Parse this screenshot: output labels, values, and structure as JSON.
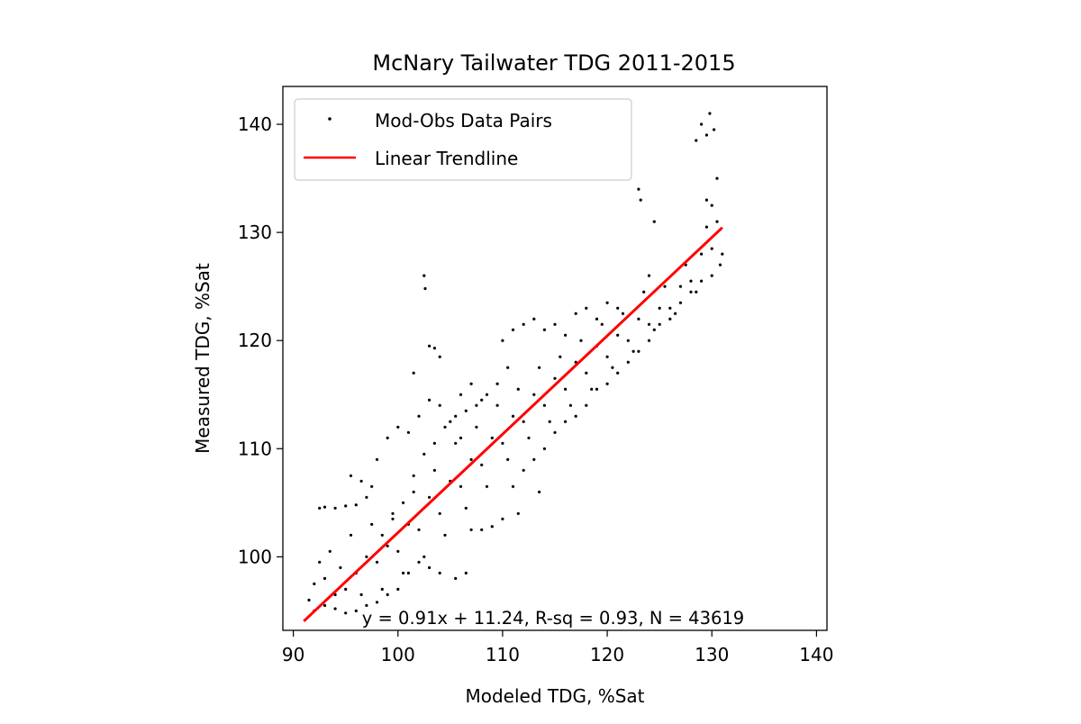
{
  "chart_data": {
    "type": "scatter",
    "title": "McNary Tailwater TDG 2011-2015",
    "xlabel": "Modeled TDG, %Sat",
    "ylabel": "Measured TDG, %Sat",
    "xlim": [
      89,
      141
    ],
    "ylim": [
      93.2,
      143.5
    ],
    "xticks": [
      90,
      100,
      110,
      120,
      130,
      140
    ],
    "yticks": [
      100,
      110,
      120,
      130,
      140
    ],
    "grid": false,
    "legend": {
      "placement": "upper-left",
      "entries": [
        {
          "label": "Mod-Obs Data Pairs",
          "marker": "dot",
          "color": "#000000"
        },
        {
          "label": "Linear Trendline",
          "marker": "line",
          "color": "#ff0000"
        }
      ]
    },
    "annotation": "y = 0.91x + 11.24, R-sq = 0.93, N = 43619",
    "series": [
      {
        "name": "Mod-Obs Data Pairs",
        "kind": "scatter",
        "color": "#000000",
        "n": 43619,
        "points": [
          [
            91.5,
            96.0
          ],
          [
            92.0,
            97.5
          ],
          [
            92.5,
            104.5
          ],
          [
            93.0,
            104.6
          ],
          [
            94.0,
            104.5
          ],
          [
            95.0,
            104.7
          ],
          [
            96.0,
            104.8
          ],
          [
            92.5,
            99.5
          ],
          [
            93.0,
            98.0
          ],
          [
            93.5,
            100.5
          ],
          [
            94.0,
            96.5
          ],
          [
            94.5,
            99.0
          ],
          [
            95.0,
            97.0
          ],
          [
            95.5,
            102.0
          ],
          [
            96.0,
            98.5
          ],
          [
            96.5,
            96.5
          ],
          [
            97.0,
            100.0
          ],
          [
            97.5,
            103.0
          ],
          [
            98.0,
            99.5
          ],
          [
            98.5,
            97.0
          ],
          [
            99.0,
            101.0
          ],
          [
            99.5,
            104.0
          ],
          [
            100.0,
            100.5
          ],
          [
            100.5,
            98.5
          ],
          [
            101.0,
            103.0
          ],
          [
            101.5,
            106.0
          ],
          [
            102.0,
            102.5
          ],
          [
            102.5,
            100.0
          ],
          [
            103.0,
            105.5
          ],
          [
            103.5,
            108.0
          ],
          [
            104.0,
            104.0
          ],
          [
            104.5,
            102.0
          ],
          [
            105.0,
            107.0
          ],
          [
            105.5,
            110.5
          ],
          [
            106.0,
            106.5
          ],
          [
            106.5,
            104.5
          ],
          [
            107.0,
            109.0
          ],
          [
            107.5,
            112.0
          ],
          [
            108.0,
            108.5
          ],
          [
            108.5,
            106.5
          ],
          [
            109.0,
            111.0
          ],
          [
            109.5,
            114.0
          ],
          [
            110.0,
            110.5
          ],
          [
            110.5,
            109.0
          ],
          [
            111.0,
            113.0
          ],
          [
            111.5,
            115.5
          ],
          [
            112.0,
            112.5
          ],
          [
            112.5,
            111.0
          ],
          [
            113.0,
            115.0
          ],
          [
            113.5,
            117.5
          ],
          [
            114.0,
            114.0
          ],
          [
            114.5,
            112.5
          ],
          [
            115.0,
            116.5
          ],
          [
            115.5,
            118.5
          ],
          [
            116.0,
            115.5
          ],
          [
            116.5,
            114.0
          ],
          [
            117.0,
            118.0
          ],
          [
            117.5,
            120.0
          ],
          [
            118.0,
            117.0
          ],
          [
            118.5,
            115.5
          ],
          [
            119.0,
            119.5
          ],
          [
            119.5,
            121.5
          ],
          [
            120.0,
            118.5
          ],
          [
            120.5,
            117.5
          ],
          [
            121.0,
            120.5
          ],
          [
            121.5,
            122.5
          ],
          [
            122.0,
            120.0
          ],
          [
            122.5,
            119.0
          ],
          [
            123.0,
            122.0
          ],
          [
            123.5,
            124.5
          ],
          [
            124.0,
            121.5
          ],
          [
            124.5,
            121.0
          ],
          [
            125.0,
            123.0
          ],
          [
            125.5,
            125.0
          ],
          [
            126.0,
            123.0
          ],
          [
            126.5,
            122.5
          ],
          [
            127.0,
            125.0
          ],
          [
            127.5,
            127.0
          ],
          [
            128.0,
            125.5
          ],
          [
            128.5,
            124.5
          ],
          [
            129.0,
            128.0
          ],
          [
            129.5,
            130.5
          ],
          [
            130.0,
            128.5
          ],
          [
            130.5,
            131.0
          ],
          [
            128.5,
            138.5
          ],
          [
            129.0,
            140.0
          ],
          [
            129.5,
            139.0
          ],
          [
            129.8,
            141.0
          ],
          [
            130.2,
            139.5
          ],
          [
            130.5,
            135.0
          ],
          [
            129.5,
            133.0
          ],
          [
            130.0,
            132.5
          ],
          [
            124.0,
            126.0
          ],
          [
            124.5,
            131.0
          ],
          [
            123.0,
            134.0
          ],
          [
            123.2,
            133.0
          ],
          [
            102.5,
            126.0
          ],
          [
            102.6,
            124.8
          ],
          [
            103.0,
            119.5
          ],
          [
            103.5,
            119.3
          ],
          [
            104.0,
            118.5
          ],
          [
            101.5,
            117.0
          ],
          [
            106.0,
            115.0
          ],
          [
            107.0,
            116.0
          ],
          [
            108.0,
            114.5
          ],
          [
            110.0,
            120.0
          ],
          [
            111.0,
            121.0
          ],
          [
            112.0,
            121.5
          ],
          [
            113.0,
            122.0
          ],
          [
            114.0,
            121.0
          ],
          [
            115.0,
            121.5
          ],
          [
            116.0,
            120.5
          ],
          [
            117.0,
            122.5
          ],
          [
            118.0,
            123.0
          ],
          [
            119.0,
            122.0
          ],
          [
            120.0,
            123.5
          ],
          [
            121.0,
            123.0
          ],
          [
            95.5,
            107.5
          ],
          [
            96.5,
            107.0
          ],
          [
            97.0,
            105.5
          ],
          [
            97.5,
            106.5
          ],
          [
            98.0,
            109.0
          ],
          [
            99.0,
            111.0
          ],
          [
            100.0,
            112.0
          ],
          [
            101.0,
            111.5
          ],
          [
            102.0,
            113.0
          ],
          [
            103.0,
            114.5
          ],
          [
            104.0,
            114.0
          ],
          [
            105.0,
            112.5
          ],
          [
            106.0,
            111.0
          ],
          [
            107.0,
            102.5
          ],
          [
            108.0,
            102.5
          ],
          [
            109.0,
            102.8
          ],
          [
            110.0,
            103.5
          ],
          [
            111.0,
            106.5
          ],
          [
            111.5,
            104.0
          ],
          [
            106.5,
            98.5
          ],
          [
            105.5,
            98.0
          ],
          [
            104.0,
            98.5
          ],
          [
            103.0,
            99.0
          ],
          [
            112.0,
            108.0
          ],
          [
            113.0,
            109.0
          ],
          [
            113.5,
            106.0
          ],
          [
            114.0,
            110.0
          ],
          [
            115.0,
            111.5
          ],
          [
            116.0,
            112.5
          ],
          [
            117.0,
            113.0
          ],
          [
            118.0,
            114.0
          ],
          [
            119.0,
            115.5
          ],
          [
            120.0,
            116.0
          ],
          [
            121.0,
            117.0
          ],
          [
            122.0,
            118.0
          ],
          [
            123.0,
            119.0
          ],
          [
            124.0,
            120.0
          ],
          [
            125.0,
            121.5
          ],
          [
            126.0,
            122.0
          ],
          [
            127.0,
            123.5
          ],
          [
            128.0,
            124.5
          ],
          [
            129.0,
            125.5
          ],
          [
            130.0,
            126.0
          ],
          [
            130.8,
            127.0
          ],
          [
            131.0,
            128.0
          ],
          [
            92.0,
            95.0
          ],
          [
            93.0,
            95.5
          ],
          [
            94.0,
            95.2
          ],
          [
            95.0,
            94.8
          ],
          [
            96.0,
            95.0
          ],
          [
            97.0,
            95.5
          ],
          [
            98.0,
            95.8
          ],
          [
            99.0,
            96.5
          ],
          [
            100.0,
            97.0
          ],
          [
            101.0,
            98.5
          ],
          [
            102.0,
            99.5
          ],
          [
            98.5,
            102.0
          ],
          [
            99.5,
            103.5
          ],
          [
            100.5,
            105.0
          ],
          [
            101.5,
            107.5
          ],
          [
            102.5,
            109.5
          ],
          [
            103.5,
            110.5
          ],
          [
            104.5,
            112.0
          ],
          [
            105.5,
            113.0
          ],
          [
            106.5,
            113.5
          ],
          [
            107.5,
            114.0
          ],
          [
            108.5,
            115.0
          ],
          [
            109.5,
            116.0
          ],
          [
            110.5,
            117.5
          ]
        ]
      },
      {
        "name": "Linear Trendline",
        "kind": "line",
        "color": "#ff0000",
        "slope": 0.91,
        "intercept": 11.24,
        "x_range": [
          91,
          131
        ]
      }
    ]
  }
}
